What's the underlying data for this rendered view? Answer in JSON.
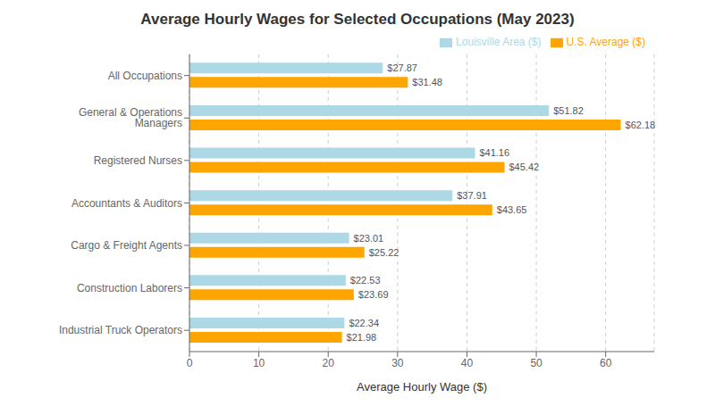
{
  "chart_data": {
    "type": "bar",
    "orientation": "horizontal",
    "title": "Average Hourly Wages for Selected Occupations (May 2023)",
    "xlabel": "Average Hourly Wage ($)",
    "categories": [
      "All Occupations",
      "General & Operations Managers",
      "Registered Nurses",
      "Accountants & Auditors",
      "Cargo & Freight Agents",
      "Construction Laborers",
      "Industrial Truck Operators"
    ],
    "series": [
      {
        "name": "Louisville Area ($)",
        "color": "#ADD8E6",
        "values": [
          27.87,
          51.82,
          41.16,
          37.91,
          23.01,
          22.53,
          22.34
        ],
        "value_labels": [
          "$27.87",
          "$51.82",
          "$41.16",
          "$37.91",
          "$23.01",
          "$22.53",
          "$22.34"
        ]
      },
      {
        "name": "U.S. Average ($)",
        "color": "#FFA500",
        "values": [
          31.48,
          62.18,
          45.42,
          43.65,
          25.22,
          23.69,
          21.98
        ],
        "value_labels": [
          "$31.48",
          "$62.18",
          "$45.42",
          "$43.65",
          "$25.22",
          "$23.69",
          "$21.98"
        ]
      }
    ],
    "xlim": [
      0,
      67
    ],
    "xticks": [
      0,
      10,
      20,
      30,
      40,
      50,
      60
    ],
    "grid": true,
    "legend": "upper right",
    "data_labels": true
  }
}
